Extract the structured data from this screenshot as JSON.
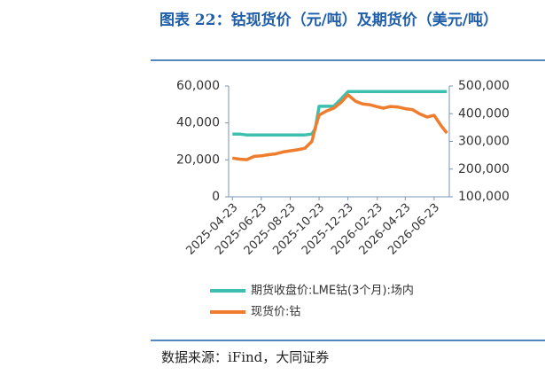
{
  "chart_data": {
    "type": "line",
    "title": "图表 22：钴现货价（元/吨）及期货价（美元/吨）",
    "source": "数据来源：iFind，大同证券",
    "x": [
      "2025-04-23",
      "2025-05-08",
      "2025-05-23",
      "2025-06-08",
      "2025-06-23",
      "2025-07-08",
      "2025-07-23",
      "2025-08-08",
      "2025-08-23",
      "2025-09-08",
      "2025-09-23",
      "2025-10-08",
      "2025-10-15",
      "2025-10-23",
      "2025-11-08",
      "2025-11-23",
      "2025-12-08",
      "2025-12-23",
      "2026-01-08",
      "2026-01-23",
      "2026-02-08",
      "2026-02-23",
      "2026-03-08",
      "2026-03-23",
      "2026-04-08",
      "2026-04-23",
      "2026-05-08",
      "2026-05-23",
      "2026-06-08",
      "2026-06-23",
      "2026-07-08",
      "2026-07-20"
    ],
    "series": [
      {
        "name": "期货收盘价:LME钴(3个月):场内",
        "color": "#3dbfb0",
        "axis": "y",
        "values": [
          34000,
          34000,
          33500,
          33500,
          33500,
          33500,
          33500,
          33500,
          33500,
          33500,
          33500,
          34000,
          37000,
          49000,
          49000,
          49000,
          52800,
          57000,
          57000,
          57000,
          57000,
          57000,
          57000,
          57000,
          57000,
          57000,
          57000,
          57000,
          57000,
          57000,
          57000,
          57000
        ]
      },
      {
        "name": "现货价:钴",
        "color": "#ef7d2d",
        "axis": "y2",
        "values": [
          240000,
          236000,
          234000,
          246000,
          248000,
          252000,
          255000,
          262000,
          266000,
          270000,
          275000,
          300000,
          350000,
          395000,
          410000,
          420000,
          440000,
          468000,
          445000,
          435000,
          432000,
          425000,
          420000,
          426000,
          424000,
          418000,
          415000,
          400000,
          388000,
          394000,
          356000,
          330000
        ]
      }
    ],
    "xlim": [
      "2025-04-15",
      "2026-07-25"
    ],
    "xticks": [
      "2025-04-23",
      "2025-06-23",
      "2025-08-23",
      "2025-10-23",
      "2025-12-23",
      "2026-02-23",
      "2026-04-23",
      "2026-06-23"
    ],
    "ylim": [
      0,
      60000
    ],
    "yticks": [
      0,
      {
        "value": 20000,
        "label": "20,000"
      },
      {
        "value": 40000,
        "label": "40,000"
      },
      {
        "value": 60000,
        "label": "60,000"
      }
    ],
    "y2lim": [
      100000,
      500000
    ],
    "y2ticks": [
      {
        "value": 100000,
        "label": "100,000"
      },
      {
        "value": 200000,
        "label": "200,000"
      },
      {
        "value": 300000,
        "label": "300,000"
      },
      {
        "value": 400000,
        "label": "400,000"
      },
      {
        "value": 500000,
        "label": "500,000"
      }
    ],
    "legend": "bottom"
  }
}
